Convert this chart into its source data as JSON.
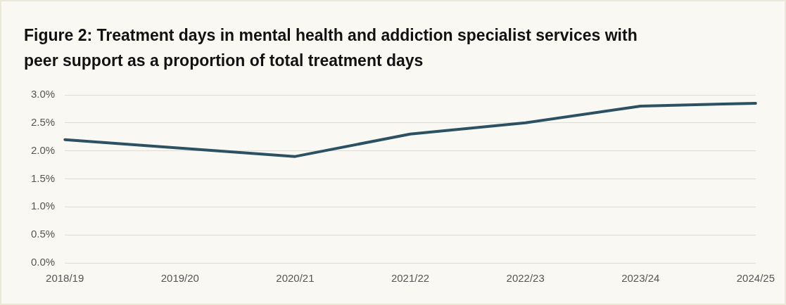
{
  "chart_data": {
    "type": "line",
    "title": "Figure 2: Treatment days in mental health and addiction specialist services with peer support as a proportion of total treatment days",
    "categories": [
      "2018/19",
      "2019/20",
      "2020/21",
      "2021/22",
      "2022/23",
      "2023/24",
      "2024/25"
    ],
    "series": [
      {
        "color": "#2b5163",
        "values": [
          2.2,
          2.05,
          1.9,
          2.3,
          2.5,
          2.8,
          2.85
        ]
      }
    ],
    "ylim": [
      0,
      3
    ],
    "yticks": [
      {
        "value": 0,
        "label": "0.0%"
      },
      {
        "value": 0.5,
        "label": "0.5%"
      },
      {
        "value": 1,
        "label": "1.0%"
      },
      {
        "value": 1.5,
        "label": "1.5%"
      },
      {
        "value": 2,
        "label": "2.0%"
      },
      {
        "value": 2.5,
        "label": "2.5%"
      },
      {
        "value": 3,
        "label": "3.0%"
      }
    ],
    "grid": "y",
    "legend": false,
    "marker": "none",
    "line_style": "solid"
  }
}
